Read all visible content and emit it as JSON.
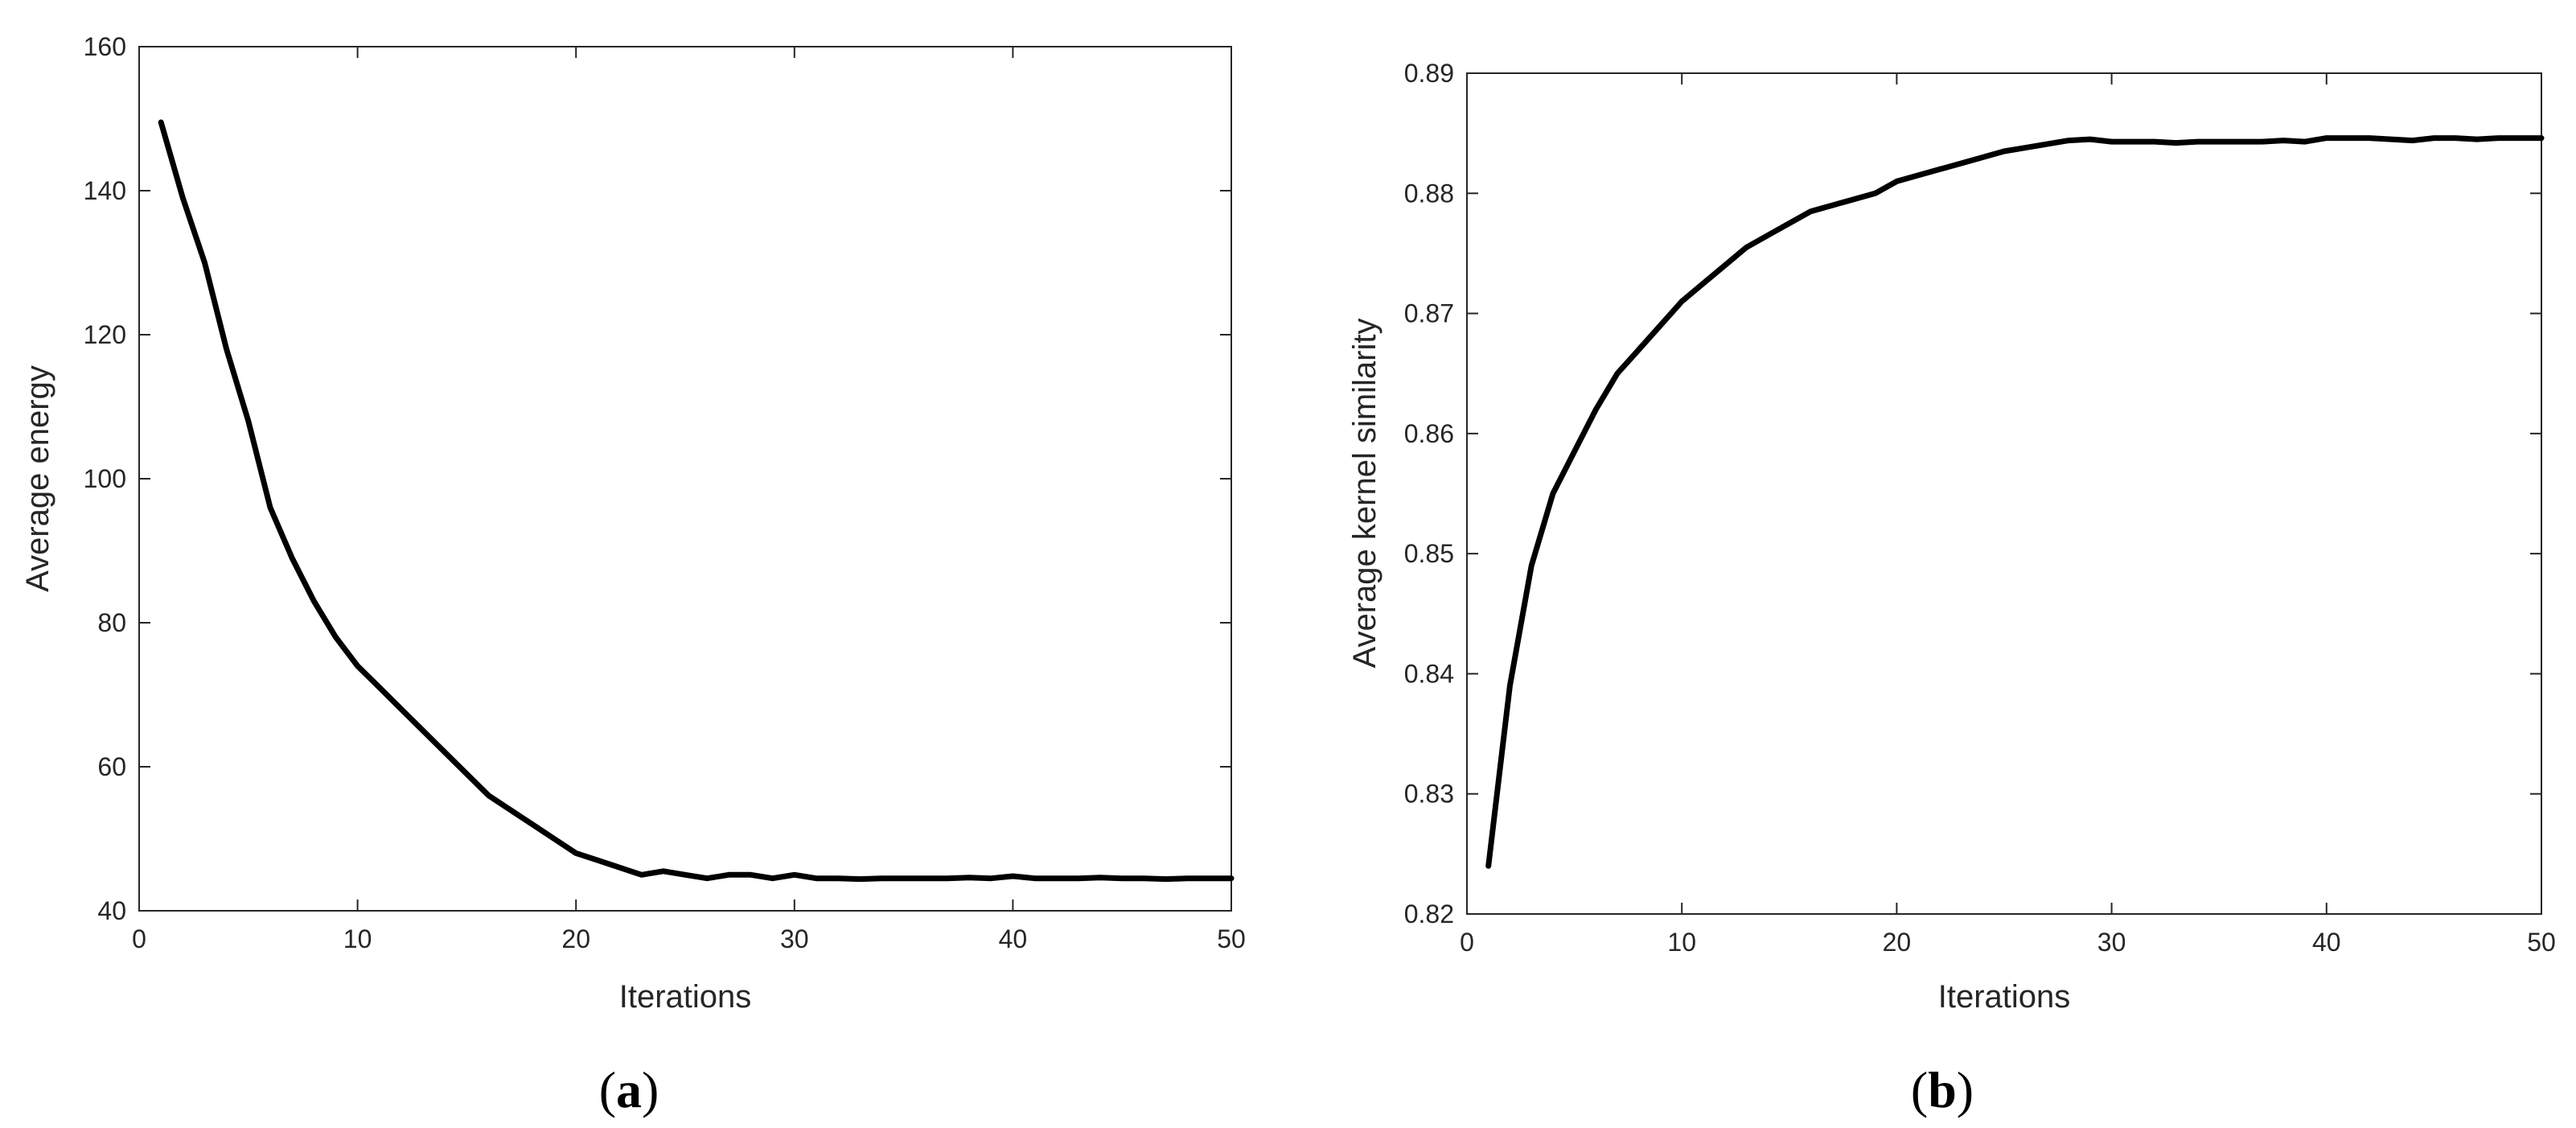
{
  "chart_data": [
    {
      "panel": "a",
      "type": "line",
      "xlabel": "Iterations",
      "ylabel": "Average energy",
      "xlim": [
        0,
        50
      ],
      "ylim": [
        40,
        160
      ],
      "xticks": [
        0,
        10,
        20,
        30,
        40,
        50
      ],
      "yticks": [
        40,
        60,
        80,
        100,
        120,
        140,
        160
      ],
      "grid": false,
      "line_color": "#000000",
      "series": [
        {
          "x": [
            1,
            2,
            3,
            4,
            5,
            6,
            7,
            8,
            9,
            10,
            11,
            12,
            13,
            14,
            15,
            16,
            17,
            18,
            19,
            20,
            21,
            22,
            23,
            24,
            25,
            26,
            27,
            28,
            29,
            30,
            31,
            32,
            33,
            34,
            35,
            36,
            37,
            38,
            39,
            40,
            41,
            42,
            43,
            44,
            45,
            46,
            47,
            48,
            49,
            50
          ],
          "y": [
            149.5,
            139,
            130,
            118,
            108,
            96,
            89,
            83,
            78,
            74,
            71,
            68,
            65,
            62,
            59,
            56,
            54,
            52,
            50,
            48,
            47,
            46,
            45,
            45.5,
            45,
            44.5,
            45,
            45,
            44.5,
            45,
            44.5,
            44.5,
            44.4,
            44.5,
            44.5,
            44.5,
            44.5,
            44.6,
            44.5,
            44.8,
            44.5,
            44.5,
            44.5,
            44.6,
            44.5,
            44.5,
            44.4,
            44.5,
            44.5,
            44.5
          ]
        }
      ]
    },
    {
      "panel": "b",
      "type": "line",
      "xlabel": "Iterations",
      "ylabel": "Average kernel similarity",
      "xlim": [
        0,
        50
      ],
      "ylim": [
        0.82,
        0.89
      ],
      "xticks": [
        0,
        10,
        20,
        30,
        40,
        50
      ],
      "yticks": [
        0.82,
        0.83,
        0.84,
        0.85,
        0.86,
        0.87,
        0.88,
        0.89
      ],
      "grid": false,
      "line_color": "#000000",
      "series": [
        {
          "x": [
            1,
            2,
            3,
            4,
            5,
            6,
            7,
            8,
            9,
            10,
            11,
            12,
            13,
            14,
            15,
            16,
            17,
            18,
            19,
            20,
            21,
            22,
            23,
            24,
            25,
            26,
            27,
            28,
            29,
            30,
            31,
            32,
            33,
            34,
            35,
            36,
            37,
            38,
            39,
            40,
            41,
            42,
            43,
            44,
            45,
            46,
            47,
            48,
            49,
            50
          ],
          "y": [
            0.824,
            0.839,
            0.849,
            0.855,
            0.8585,
            0.862,
            0.865,
            0.867,
            0.869,
            0.871,
            0.8725,
            0.874,
            0.8755,
            0.8765,
            0.8775,
            0.8785,
            0.879,
            0.8795,
            0.88,
            0.881,
            0.8815,
            0.882,
            0.8825,
            0.883,
            0.8835,
            0.8838,
            0.8841,
            0.8844,
            0.8845,
            0.8843,
            0.8843,
            0.8843,
            0.8842,
            0.8843,
            0.8843,
            0.8843,
            0.8843,
            0.8844,
            0.8843,
            0.8846,
            0.8846,
            0.8846,
            0.8845,
            0.8844,
            0.8846,
            0.8846,
            0.8845,
            0.8846,
            0.8846,
            0.8846
          ]
        }
      ]
    }
  ],
  "panels": [
    {
      "label_open": "(",
      "label_letter": "a",
      "label_close": ")"
    },
    {
      "label_open": "(",
      "label_letter": "b",
      "label_close": ")"
    }
  ]
}
